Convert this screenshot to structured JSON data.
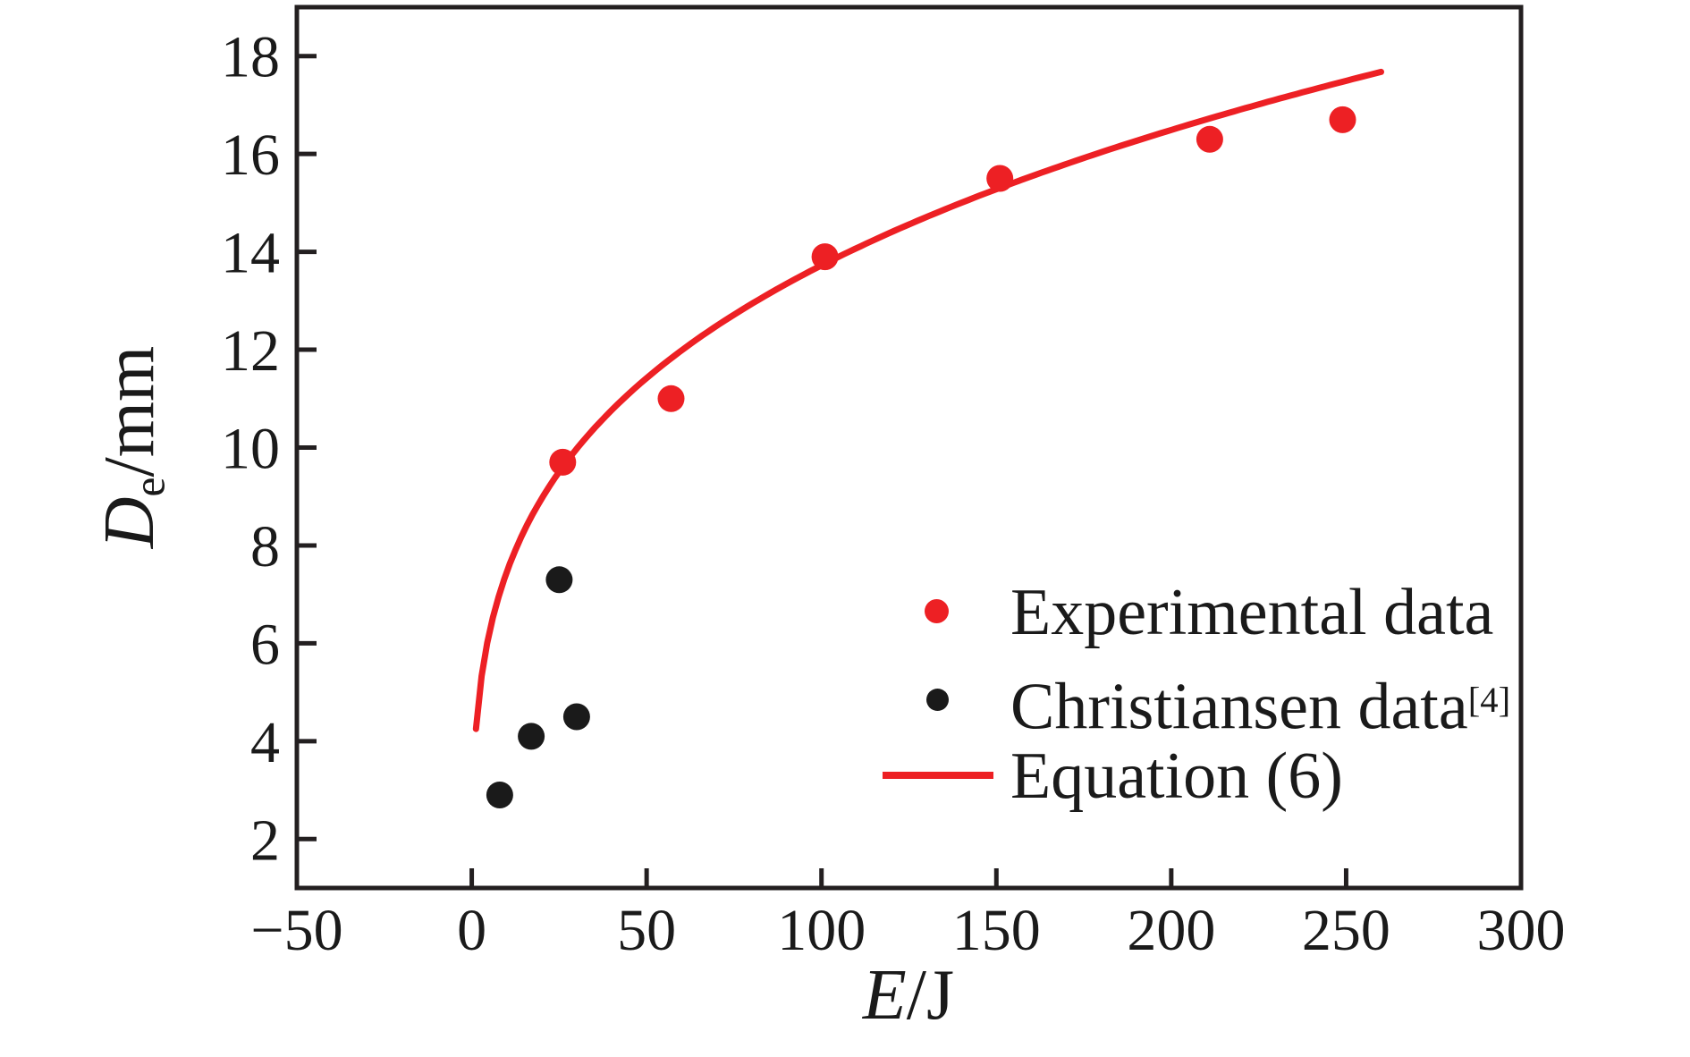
{
  "figure": {
    "background": "#ffffff",
    "frame_color": "#231f20",
    "text_color": "#1a1a1a",
    "accent_red": "#ed2024"
  },
  "chart_data": {
    "type": "scatter",
    "title": "",
    "xlabel": "E/J",
    "ylabel": "De/mm",
    "xlabel_parts": {
      "var": "E",
      "rest": "/J"
    },
    "ylabel_parts": {
      "var": "D",
      "sub": "e",
      "rest": "/mm"
    },
    "xlim": [
      -50,
      300
    ],
    "ylim": [
      1,
      19
    ],
    "grid": false,
    "x_ticks": {
      "values": [
        -50,
        0,
        50,
        100,
        150,
        200,
        250,
        300
      ],
      "labels": [
        "−50",
        "0",
        "50",
        "100",
        "150",
        "200",
        "250",
        "300"
      ]
    },
    "y_ticks": {
      "values": [
        18,
        16,
        14,
        12,
        10,
        8,
        6,
        4,
        2
      ],
      "labels": [
        "18",
        "16",
        "14",
        "12",
        "10",
        "8",
        "6",
        "4",
        "2"
      ]
    },
    "series": [
      {
        "name": "Experimental data",
        "type": "scatter",
        "color": "#ed2024",
        "points": [
          [
            26,
            9.7
          ],
          [
            57,
            11.0
          ],
          [
            101,
            13.9
          ],
          [
            151,
            15.5
          ],
          [
            211,
            16.3
          ],
          [
            249,
            16.7
          ]
        ]
      },
      {
        "name": "Christiansen data [4]",
        "type": "scatter",
        "color": "#1a1a1a",
        "points": [
          [
            8,
            2.9
          ],
          [
            17,
            4.1
          ],
          [
            25,
            7.3
          ],
          [
            30,
            4.5
          ]
        ]
      },
      {
        "name": "Equation (6)",
        "type": "line",
        "color": "#ed2024",
        "fit": {
          "form": "D = a·E^b",
          "a": 4.05,
          "b": 0.265,
          "x_start": 1.2,
          "x_end": 260
        }
      }
    ],
    "legend_position": "inside lower right",
    "legend": {
      "items": [
        {
          "label": "Experimental data",
          "marker": "dot",
          "color": "#ed2024"
        },
        {
          "label_main": "Christiansen data",
          "label_sup": "[4]",
          "marker": "dot",
          "color": "#1a1a1a"
        },
        {
          "label": "Equation (6)",
          "marker": "line",
          "color": "#ed2024"
        }
      ]
    }
  }
}
